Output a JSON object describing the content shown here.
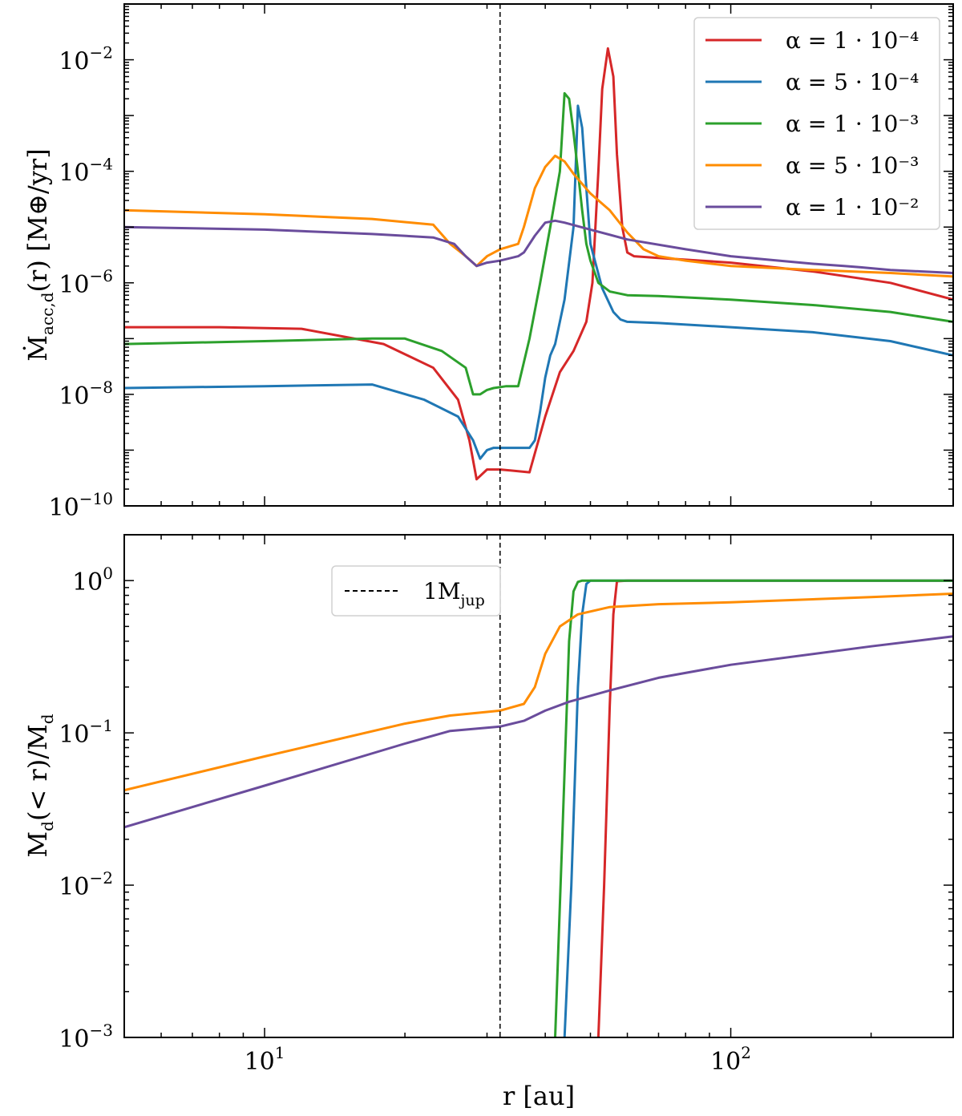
{
  "chart_data": [
    {
      "panel": "top",
      "type": "line",
      "xscale": "log",
      "yscale": "log",
      "xlim": [
        5.0,
        300.0
      ],
      "ylim": [
        1e-10,
        0.1
      ],
      "ylabel": "Ṁ_acc,d(r) [M⊕/yr]",
      "ylabel_main": "Ṁ",
      "ylabel_sub": "acc,d",
      "ylabel_rest": "(r) [M⊕/yr]",
      "yticks": [
        {
          "value": 1e-10,
          "base": "10",
          "exp": "−10"
        },
        {
          "value": 1e-08,
          "base": "10",
          "exp": "−8"
        },
        {
          "value": 1e-06,
          "base": "10",
          "exp": "−6"
        },
        {
          "value": 0.0001,
          "base": "10",
          "exp": "−4"
        },
        {
          "value": 0.01,
          "base": "10",
          "exp": "−2"
        }
      ],
      "vline": {
        "x": 32.0,
        "style": "dashed"
      },
      "legend_position": "top-right",
      "series": [
        {
          "name": "α = 1 · 10⁻⁴",
          "color": "#d62728",
          "x": [
            5,
            8,
            12,
            18,
            23,
            26,
            27.5,
            28.5,
            30,
            32,
            37,
            40,
            43,
            46,
            49,
            50.5,
            52,
            53,
            54.5,
            56,
            57,
            58.5,
            60,
            62,
            70,
            100,
            150,
            220,
            300
          ],
          "y": [
            1.6e-07,
            1.6e-07,
            1.5e-07,
            8e-08,
            3e-08,
            8e-09,
            1.5e-09,
            3e-10,
            4.5e-10,
            4.5e-10,
            4e-10,
            4e-09,
            2.5e-08,
            6e-08,
            2e-07,
            1e-06,
            0.0001,
            0.003,
            0.016,
            0.005,
            0.0002,
            1e-05,
            3.5e-06,
            3e-06,
            2.8e-06,
            2.3e-06,
            1.6e-06,
            1e-06,
            5e-07
          ]
        },
        {
          "name": "α = 5 · 10⁻⁴",
          "color": "#1f77b4",
          "x": [
            5,
            10,
            17,
            22,
            26,
            28,
            29,
            30,
            31,
            33,
            37,
            38,
            39,
            40,
            41,
            42,
            44,
            46,
            47,
            48,
            49,
            50,
            53,
            56,
            58,
            60,
            70,
            100,
            150,
            220,
            300
          ],
          "y": [
            1.3e-08,
            1.4e-08,
            1.5e-08,
            8e-09,
            4e-09,
            1.5e-09,
            7e-10,
            1e-09,
            1.1e-09,
            1.1e-09,
            1.1e-09,
            1.5e-09,
            5e-09,
            2e-08,
            5e-08,
            8e-08,
            5e-07,
            1e-05,
            0.0015,
            0.0006,
            5e-05,
            5e-06,
            8e-07,
            3e-07,
            2.2e-07,
            2e-07,
            1.9e-07,
            1.6e-07,
            1.3e-07,
            9e-08,
            5e-08
          ]
        },
        {
          "name": "α = 1 · 10⁻³",
          "color": "#2ca02c",
          "x": [
            5,
            10,
            17,
            20,
            24,
            27,
            28,
            29,
            30,
            31,
            33,
            35,
            37,
            39,
            41,
            43,
            44,
            45,
            46,
            47,
            48,
            49,
            50,
            52,
            55,
            60,
            70,
            100,
            150,
            220,
            300
          ],
          "y": [
            8e-08,
            9e-08,
            1e-07,
            1e-07,
            6e-08,
            3e-08,
            1e-08,
            1e-08,
            1.2e-08,
            1.3e-08,
            1.4e-08,
            1.4e-08,
            1e-07,
            1e-06,
            1e-05,
            0.0001,
            0.0025,
            0.002,
            0.0005,
            0.0001,
            2e-05,
            5e-06,
            2.5e-06,
            1e-06,
            7e-07,
            6e-07,
            5.8e-07,
            5e-07,
            4e-07,
            3e-07,
            2e-07
          ]
        },
        {
          "name": "α = 5 · 10⁻³",
          "color": "#ff8c00",
          "x": [
            5,
            10,
            17,
            23,
            25,
            27,
            28.5,
            30,
            32,
            35,
            36,
            38,
            40,
            42,
            44,
            46,
            50,
            55,
            60,
            65,
            70,
            80,
            100,
            150,
            220,
            300
          ],
          "y": [
            2e-05,
            1.7e-05,
            1.4e-05,
            1.1e-05,
            5e-06,
            3e-06,
            2e-06,
            3e-06,
            4e-06,
            5e-06,
            1e-05,
            5e-05,
            0.00012,
            0.00019,
            0.00015,
            9e-05,
            4e-05,
            2e-05,
            8e-06,
            4e-06,
            3e-06,
            2.5e-06,
            2e-06,
            1.7e-06,
            1.5e-06,
            1.3e-06
          ]
        },
        {
          "name": "α = 1 · 10⁻²",
          "color": "#6a4c9c",
          "x": [
            5,
            10,
            17,
            23,
            25.5,
            27,
            28.5,
            30,
            32,
            35,
            36,
            38,
            40,
            42,
            44,
            50,
            60,
            80,
            100,
            150,
            175,
            190,
            220,
            300
          ],
          "y": [
            1e-05,
            9e-06,
            7.5e-06,
            6.5e-06,
            5e-06,
            3e-06,
            2e-06,
            2.3e-06,
            2.5e-06,
            3e-06,
            3.5e-06,
            7e-06,
            1.2e-05,
            1.3e-05,
            1.2e-05,
            9e-06,
            6e-06,
            4e-06,
            3e-06,
            2.2e-06,
            2e-06,
            1.9e-06,
            1.7e-06,
            1.5e-06
          ]
        }
      ]
    },
    {
      "panel": "bottom",
      "type": "line",
      "xscale": "log",
      "yscale": "log",
      "xlim": [
        5.0,
        300.0
      ],
      "ylim": [
        0.001,
        2.0
      ],
      "xlabel": "r [au]",
      "ylabel": "M_d(< r)/M_d",
      "ylabel_a": "M",
      "ylabel_a_sub": "d",
      "ylabel_b": "(< r)/M",
      "ylabel_b_sub": "d",
      "xticks": [
        {
          "value": 10,
          "base": "10",
          "exp": "1"
        },
        {
          "value": 100,
          "base": "10",
          "exp": "2"
        }
      ],
      "yticks": [
        {
          "value": 0.001,
          "base": "10",
          "exp": "−3"
        },
        {
          "value": 0.01,
          "base": "10",
          "exp": "−2"
        },
        {
          "value": 0.1,
          "base": "10",
          "exp": "−1"
        },
        {
          "value": 1,
          "base": "10",
          "exp": "0"
        }
      ],
      "vline": {
        "x": 32.0,
        "style": "dashed"
      },
      "legend": {
        "label_main": "1M",
        "label_sub": "jup",
        "position": "top-left"
      },
      "series": [
        {
          "name": "α = 1 · 10⁻⁴",
          "color": "#d62728",
          "x": [
            52,
            53.5,
            55,
            56,
            57,
            60,
            100,
            300
          ],
          "y": [
            0.001,
            0.01,
            0.15,
            0.6,
            0.99,
            1.0,
            1.0,
            1.0
          ]
        },
        {
          "name": "α = 5 · 10⁻⁴",
          "color": "#1f77b4",
          "x": [
            44,
            45.5,
            47,
            48,
            49,
            50,
            100,
            300
          ],
          "y": [
            0.001,
            0.01,
            0.2,
            0.6,
            0.95,
            1.0,
            1.0,
            1.0
          ]
        },
        {
          "name": "α = 1 · 10⁻³",
          "color": "#2ca02c",
          "x": [
            42,
            43.5,
            45,
            46,
            47,
            48,
            100,
            300
          ],
          "y": [
            0.001,
            0.02,
            0.4,
            0.85,
            0.98,
            1.0,
            1.0,
            1.0
          ]
        },
        {
          "name": "α = 5 · 10⁻³",
          "color": "#ff8c00",
          "x": [
            5,
            10,
            20,
            25,
            32,
            36,
            38,
            40,
            43,
            47,
            55,
            70,
            100,
            200,
            300
          ],
          "y": [
            0.042,
            0.07,
            0.115,
            0.13,
            0.14,
            0.155,
            0.2,
            0.33,
            0.5,
            0.6,
            0.67,
            0.7,
            0.72,
            0.78,
            0.82
          ]
        },
        {
          "name": "α = 1 · 10⁻²",
          "color": "#6a4c9c",
          "x": [
            5,
            10,
            20,
            25,
            32,
            36,
            40,
            45,
            55,
            70,
            100,
            200,
            300
          ],
          "y": [
            0.024,
            0.045,
            0.085,
            0.103,
            0.11,
            0.12,
            0.14,
            0.16,
            0.19,
            0.23,
            0.28,
            0.37,
            0.43
          ]
        }
      ]
    }
  ]
}
